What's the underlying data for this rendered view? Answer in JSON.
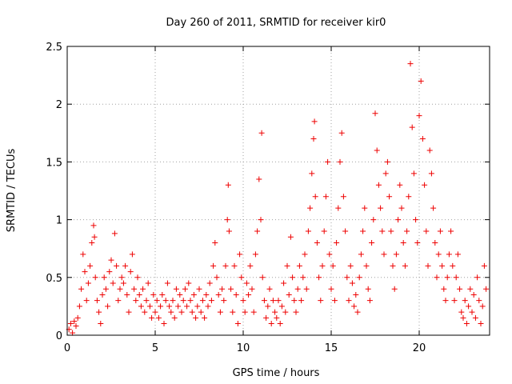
{
  "chart_data": {
    "type": "scatter",
    "title": "Day 260 of 2011, SRMTID for receiver kir0",
    "xlabel": "GPS time / hours",
    "ylabel": "SRMTID / TECUs",
    "xlim": [
      0,
      24
    ],
    "ylim": [
      0,
      2.5
    ],
    "xticks": [
      0,
      5,
      10,
      15,
      20
    ],
    "xtick_labels": [
      "0",
      "5",
      "10",
      "15",
      "20"
    ],
    "yticks": [
      0,
      0.5,
      1,
      1.5,
      2,
      2.5
    ],
    "ytick_labels": [
      "0",
      "0.5",
      "1",
      "1.5",
      "2",
      "2.5"
    ],
    "grid": true,
    "marker": "plus",
    "color": "#ee0000",
    "series": [
      {
        "name": "SRMTID",
        "points": [
          [
            0.1,
            0.05
          ],
          [
            0.2,
            0.1
          ],
          [
            0.3,
            0.02
          ],
          [
            0.4,
            0.12
          ],
          [
            0.5,
            0.08
          ],
          [
            0.6,
            0.15
          ],
          [
            0.7,
            0.25
          ],
          [
            0.8,
            0.4
          ],
          [
            0.9,
            0.7
          ],
          [
            1.0,
            0.55
          ],
          [
            1.1,
            0.3
          ],
          [
            1.2,
            0.45
          ],
          [
            1.3,
            0.6
          ],
          [
            1.4,
            0.8
          ],
          [
            1.5,
            0.95
          ],
          [
            1.55,
            0.85
          ],
          [
            1.6,
            0.5
          ],
          [
            1.7,
            0.3
          ],
          [
            1.8,
            0.2
          ],
          [
            1.9,
            0.1
          ],
          [
            2.0,
            0.35
          ],
          [
            2.1,
            0.5
          ],
          [
            2.2,
            0.4
          ],
          [
            2.3,
            0.25
          ],
          [
            2.4,
            0.55
          ],
          [
            2.5,
            0.65
          ],
          [
            2.6,
            0.45
          ],
          [
            2.7,
            0.88
          ],
          [
            2.8,
            0.6
          ],
          [
            2.9,
            0.3
          ],
          [
            3.0,
            0.4
          ],
          [
            3.1,
            0.5
          ],
          [
            3.2,
            0.45
          ],
          [
            3.3,
            0.6
          ],
          [
            3.4,
            0.35
          ],
          [
            3.5,
            0.2
          ],
          [
            3.6,
            0.55
          ],
          [
            3.7,
            0.7
          ],
          [
            3.8,
            0.4
          ],
          [
            3.9,
            0.3
          ],
          [
            4.0,
            0.5
          ],
          [
            4.1,
            0.35
          ],
          [
            4.2,
            0.25
          ],
          [
            4.3,
            0.4
          ],
          [
            4.4,
            0.2
          ],
          [
            4.5,
            0.3
          ],
          [
            4.6,
            0.45
          ],
          [
            4.7,
            0.25
          ],
          [
            4.8,
            0.15
          ],
          [
            4.9,
            0.35
          ],
          [
            5.0,
            0.2
          ],
          [
            5.1,
            0.3
          ],
          [
            5.2,
            0.15
          ],
          [
            5.3,
            0.25
          ],
          [
            5.4,
            0.35
          ],
          [
            5.5,
            0.1
          ],
          [
            5.6,
            0.3
          ],
          [
            5.7,
            0.45
          ],
          [
            5.8,
            0.25
          ],
          [
            5.9,
            0.2
          ],
          [
            6.0,
            0.3
          ],
          [
            6.1,
            0.15
          ],
          [
            6.2,
            0.4
          ],
          [
            6.3,
            0.25
          ],
          [
            6.4,
            0.35
          ],
          [
            6.5,
            0.2
          ],
          [
            6.6,
            0.3
          ],
          [
            6.7,
            0.4
          ],
          [
            6.8,
            0.25
          ],
          [
            6.9,
            0.45
          ],
          [
            7.0,
            0.3
          ],
          [
            7.1,
            0.2
          ],
          [
            7.2,
            0.35
          ],
          [
            7.3,
            0.15
          ],
          [
            7.4,
            0.25
          ],
          [
            7.5,
            0.4
          ],
          [
            7.6,
            0.2
          ],
          [
            7.7,
            0.3
          ],
          [
            7.8,
            0.15
          ],
          [
            7.9,
            0.35
          ],
          [
            8.0,
            0.25
          ],
          [
            8.1,
            0.45
          ],
          [
            8.2,
            0.3
          ],
          [
            8.3,
            0.6
          ],
          [
            8.4,
            0.8
          ],
          [
            8.5,
            0.5
          ],
          [
            8.6,
            0.35
          ],
          [
            8.7,
            0.2
          ],
          [
            8.8,
            0.4
          ],
          [
            8.9,
            0.3
          ],
          [
            9.0,
            0.6
          ],
          [
            9.1,
            1.0
          ],
          [
            9.15,
            1.3
          ],
          [
            9.2,
            0.9
          ],
          [
            9.3,
            0.4
          ],
          [
            9.4,
            0.2
          ],
          [
            9.5,
            0.6
          ],
          [
            9.6,
            0.35
          ],
          [
            9.7,
            0.1
          ],
          [
            9.8,
            0.7
          ],
          [
            9.9,
            0.5
          ],
          [
            10.0,
            0.3
          ],
          [
            10.1,
            0.2
          ],
          [
            10.2,
            0.45
          ],
          [
            10.3,
            0.35
          ],
          [
            10.4,
            0.6
          ],
          [
            10.5,
            0.4
          ],
          [
            10.6,
            0.2
          ],
          [
            10.7,
            0.7
          ],
          [
            10.8,
            0.9
          ],
          [
            10.9,
            1.35
          ],
          [
            11.0,
            1.0
          ],
          [
            11.05,
            1.75
          ],
          [
            11.1,
            0.5
          ],
          [
            11.2,
            0.3
          ],
          [
            11.3,
            0.15
          ],
          [
            11.4,
            0.25
          ],
          [
            11.5,
            0.4
          ],
          [
            11.6,
            0.1
          ],
          [
            11.7,
            0.3
          ],
          [
            11.8,
            0.2
          ],
          [
            11.9,
            0.15
          ],
          [
            12.0,
            0.3
          ],
          [
            12.1,
            0.1
          ],
          [
            12.2,
            0.25
          ],
          [
            12.3,
            0.45
          ],
          [
            12.4,
            0.2
          ],
          [
            12.5,
            0.6
          ],
          [
            12.6,
            0.35
          ],
          [
            12.7,
            0.85
          ],
          [
            12.8,
            0.5
          ],
          [
            12.9,
            0.3
          ],
          [
            13.0,
            0.2
          ],
          [
            13.1,
            0.4
          ],
          [
            13.2,
            0.6
          ],
          [
            13.3,
            0.3
          ],
          [
            13.4,
            0.5
          ],
          [
            13.5,
            0.7
          ],
          [
            13.6,
            0.4
          ],
          [
            13.7,
            0.9
          ],
          [
            13.8,
            1.1
          ],
          [
            13.9,
            1.4
          ],
          [
            14.0,
            1.7
          ],
          [
            14.05,
            1.85
          ],
          [
            14.1,
            1.2
          ],
          [
            14.2,
            0.8
          ],
          [
            14.3,
            0.5
          ],
          [
            14.4,
            0.3
          ],
          [
            14.5,
            0.6
          ],
          [
            14.6,
            0.9
          ],
          [
            14.7,
            1.2
          ],
          [
            14.8,
            1.5
          ],
          [
            14.9,
            0.7
          ],
          [
            15.0,
            0.4
          ],
          [
            15.1,
            0.6
          ],
          [
            15.2,
            0.3
          ],
          [
            15.3,
            0.8
          ],
          [
            15.4,
            1.1
          ],
          [
            15.5,
            1.5
          ],
          [
            15.6,
            1.75
          ],
          [
            15.7,
            1.2
          ],
          [
            15.8,
            0.9
          ],
          [
            15.9,
            0.5
          ],
          [
            16.0,
            0.3
          ],
          [
            16.1,
            0.6
          ],
          [
            16.2,
            0.45
          ],
          [
            16.3,
            0.25
          ],
          [
            16.4,
            0.35
          ],
          [
            16.5,
            0.2
          ],
          [
            16.6,
            0.5
          ],
          [
            16.7,
            0.7
          ],
          [
            16.8,
            0.9
          ],
          [
            16.9,
            1.1
          ],
          [
            17.0,
            0.6
          ],
          [
            17.1,
            0.4
          ],
          [
            17.2,
            0.3
          ],
          [
            17.3,
            0.8
          ],
          [
            17.4,
            1.0
          ],
          [
            17.5,
            1.92
          ],
          [
            17.6,
            1.6
          ],
          [
            17.7,
            1.3
          ],
          [
            17.8,
            1.1
          ],
          [
            17.9,
            0.9
          ],
          [
            18.0,
            0.7
          ],
          [
            18.1,
            1.4
          ],
          [
            18.2,
            1.5
          ],
          [
            18.3,
            1.2
          ],
          [
            18.4,
            0.9
          ],
          [
            18.5,
            0.6
          ],
          [
            18.6,
            0.4
          ],
          [
            18.7,
            0.7
          ],
          [
            18.8,
            1.0
          ],
          [
            18.9,
            1.3
          ],
          [
            19.0,
            1.1
          ],
          [
            19.1,
            0.8
          ],
          [
            19.2,
            0.6
          ],
          [
            19.3,
            0.9
          ],
          [
            19.4,
            1.2
          ],
          [
            19.5,
            2.35
          ],
          [
            19.6,
            1.8
          ],
          [
            19.7,
            1.4
          ],
          [
            19.8,
            1.0
          ],
          [
            19.9,
            0.8
          ],
          [
            20.0,
            1.9
          ],
          [
            20.1,
            2.2
          ],
          [
            20.2,
            1.7
          ],
          [
            20.3,
            1.3
          ],
          [
            20.4,
            0.9
          ],
          [
            20.5,
            0.6
          ],
          [
            20.6,
            1.6
          ],
          [
            20.7,
            1.4
          ],
          [
            20.8,
            1.1
          ],
          [
            20.9,
            0.8
          ],
          [
            21.0,
            0.5
          ],
          [
            21.1,
            0.7
          ],
          [
            21.2,
            0.9
          ],
          [
            21.3,
            0.6
          ],
          [
            21.4,
            0.4
          ],
          [
            21.5,
            0.3
          ],
          [
            21.6,
            0.5
          ],
          [
            21.7,
            0.7
          ],
          [
            21.8,
            0.9
          ],
          [
            21.9,
            0.6
          ],
          [
            22.0,
            0.3
          ],
          [
            22.1,
            0.5
          ],
          [
            22.2,
            0.7
          ],
          [
            22.3,
            0.4
          ],
          [
            22.4,
            0.2
          ],
          [
            22.5,
            0.15
          ],
          [
            22.6,
            0.3
          ],
          [
            22.7,
            0.1
          ],
          [
            22.8,
            0.25
          ],
          [
            22.9,
            0.4
          ],
          [
            23.0,
            0.2
          ],
          [
            23.1,
            0.35
          ],
          [
            23.2,
            0.15
          ],
          [
            23.3,
            0.5
          ],
          [
            23.4,
            0.3
          ],
          [
            23.5,
            0.1
          ],
          [
            23.6,
            0.25
          ],
          [
            23.7,
            0.6
          ],
          [
            23.8,
            0.4
          ]
        ]
      }
    ]
  }
}
